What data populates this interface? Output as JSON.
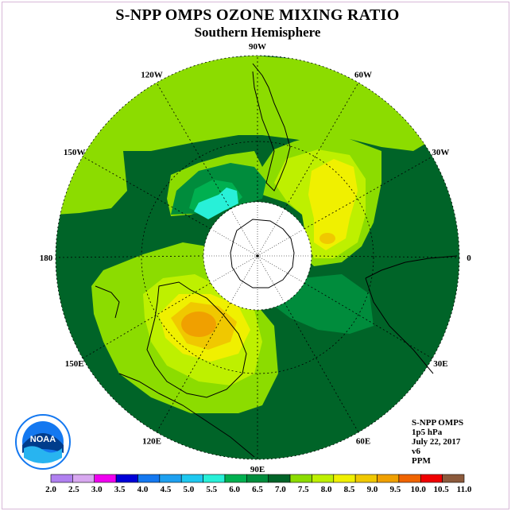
{
  "title": "S-NPP OMPS OZONE MIXING RATIO",
  "subtitle": "Southern Hemisphere",
  "longitude_labels": [
    {
      "text": "90W",
      "lon": -90
    },
    {
      "text": "60W",
      "lon": -60
    },
    {
      "text": "30W",
      "lon": -30
    },
    {
      "text": "0",
      "lon": 0
    },
    {
      "text": "30E",
      "lon": 30
    },
    {
      "text": "60E",
      "lon": 60
    },
    {
      "text": "90E",
      "lon": 90
    },
    {
      "text": "120E",
      "lon": 120
    },
    {
      "text": "150E",
      "lon": 150
    },
    {
      "text": "180",
      "lon": 180
    },
    {
      "text": "150W",
      "lon": -150
    },
    {
      "text": "120W",
      "lon": -120
    }
  ],
  "info": {
    "instrument": "S-NPP OMPS",
    "level": "1p5 hPa",
    "date": "July 22, 2017",
    "version": "v6",
    "units": "PPM"
  },
  "logo": {
    "text": "NOAA",
    "icon": "noaa-logo-icon"
  },
  "colorbar": {
    "ticks": [
      "2.0",
      "2.5",
      "3.0",
      "3.5",
      "4.0",
      "4.5",
      "5.0",
      "5.5",
      "6.0",
      "6.5",
      "7.0",
      "7.5",
      "8.0",
      "8.5",
      "9.0",
      "9.5",
      "10.0",
      "10.5",
      "11.0"
    ],
    "colors": [
      "#b080f0",
      "#d8a8f0",
      "#f000f0",
      "#0000d8",
      "#1478f0",
      "#1ea0f0",
      "#1ec8f0",
      "#28f0d8",
      "#00b050",
      "#008c3c",
      "#006428",
      "#8cdc00",
      "#bef000",
      "#f0f000",
      "#f0c800",
      "#f0a000",
      "#f06400",
      "#f00000",
      "#8c5a3c"
    ]
  },
  "colors": {
    "background": "#006428",
    "pole_mask": "#ffffff",
    "coastline": "#000000",
    "grid": "#000000"
  }
}
